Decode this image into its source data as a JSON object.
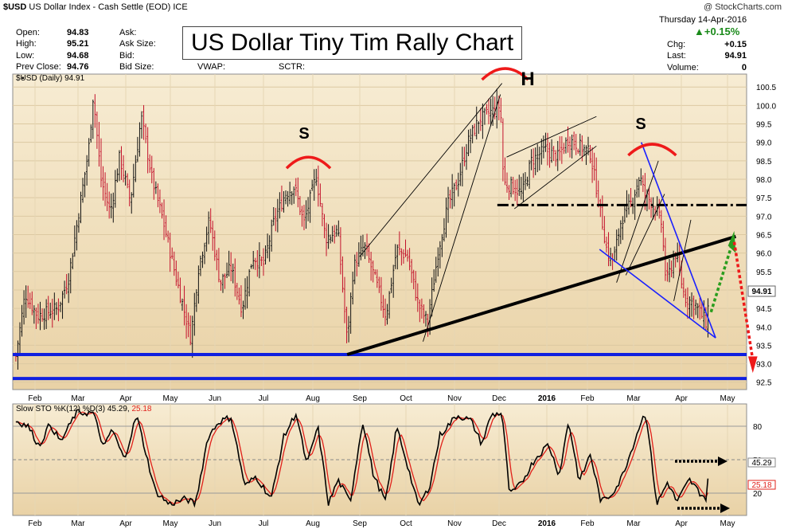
{
  "header": {
    "symbol": "$USD",
    "name": "US Dollar Index - Cash Settle (EOD)",
    "exchange": "ICE",
    "credit": "@ StockCharts.com",
    "date": "Thursday  14-Apr-2016",
    "change_pct": "+0.15%",
    "rows_left": [
      {
        "label": "Open:",
        "value": "94.83"
      },
      {
        "label": "High:",
        "value": "95.21"
      },
      {
        "label": "Low:",
        "value": "94.68"
      },
      {
        "label": "Prev Close:",
        "value": "94.76"
      }
    ],
    "rows_mid": [
      "Ask:",
      "Ask Size:",
      "Bid:",
      "Bid Size:"
    ],
    "vwap": "VWAP:",
    "sctr": "SCTR:",
    "rows_right": [
      {
        "label": "Chg:",
        "value": "+0.15"
      },
      {
        "label": "Last:",
        "value": "94.91"
      },
      {
        "label": "Volume:",
        "value": "0"
      }
    ]
  },
  "annotation_title": "US Dollar Tiny Tim Rally Chart",
  "chart_data": [
    {
      "type": "candlestick",
      "legend": "$USD (Daily) 94.91",
      "last_value": "94.91",
      "y_ticks": [
        "92.5",
        "93.0",
        "93.5",
        "94.0",
        "94.5",
        "95.0",
        "95.5",
        "96.0",
        "96.5",
        "97.0",
        "97.5",
        "98.0",
        "98.5",
        "99.0",
        "99.5",
        "100.0",
        "100.5"
      ],
      "ylim": [
        92.3,
        100.85
      ],
      "x_ticks": [
        "Feb",
        "Mar",
        "Apr",
        "May",
        "Jun",
        "Jul",
        "Aug",
        "Sep",
        "Oct",
        "Nov",
        "Dec",
        "2016",
        "Feb",
        "Mar",
        "Apr",
        "May"
      ],
      "close_path": [
        [
          "2015-01-22",
          93.2
        ],
        [
          "2015-01-28",
          94.9
        ],
        [
          "2015-02-05",
          94.3
        ],
        [
          "2015-02-18",
          94.5
        ],
        [
          "2015-02-25",
          95.3
        ],
        [
          "2015-03-04",
          97.2
        ],
        [
          "2015-03-10",
          98.8
        ],
        [
          "2015-03-13",
          100.3
        ],
        [
          "2015-03-18",
          98.0
        ],
        [
          "2015-03-24",
          97.1
        ],
        [
          "2015-03-30",
          98.6
        ],
        [
          "2015-04-06",
          97.4
        ],
        [
          "2015-04-13",
          99.7
        ],
        [
          "2015-04-20",
          98.0
        ],
        [
          "2015-04-27",
          96.9
        ],
        [
          "2015-05-04",
          95.6
        ],
        [
          "2015-05-08",
          94.9
        ],
        [
          "2015-05-15",
          93.7
        ],
        [
          "2015-05-20",
          95.6
        ],
        [
          "2015-05-27",
          96.9
        ],
        [
          "2015-06-03",
          95.2
        ],
        [
          "2015-06-10",
          95.6
        ],
        [
          "2015-06-17",
          94.5
        ],
        [
          "2015-06-24",
          95.9
        ],
        [
          "2015-07-01",
          95.7
        ],
        [
          "2015-07-08",
          96.9
        ],
        [
          "2015-07-15",
          97.6
        ],
        [
          "2015-07-21",
          97.8
        ],
        [
          "2015-07-27",
          96.8
        ],
        [
          "2015-08-04",
          98.1
        ],
        [
          "2015-08-10",
          96.4
        ],
        [
          "2015-08-18",
          96.6
        ],
        [
          "2015-08-24",
          93.6
        ],
        [
          "2015-08-28",
          95.6
        ],
        [
          "2015-09-04",
          96.2
        ],
        [
          "2015-09-11",
          95.3
        ],
        [
          "2015-09-18",
          94.3
        ],
        [
          "2015-09-25",
          96.1
        ],
        [
          "2015-10-02",
          95.9
        ],
        [
          "2015-10-09",
          94.6
        ],
        [
          "2015-10-15",
          94.1
        ],
        [
          "2015-10-22",
          96.1
        ],
        [
          "2015-10-28",
          97.3
        ],
        [
          "2015-11-04",
          98.0
        ],
        [
          "2015-11-10",
          99.0
        ],
        [
          "2015-11-17",
          99.6
        ],
        [
          "2015-11-24",
          99.8
        ],
        [
          "2015-12-01",
          100.0
        ],
        [
          "2015-12-03",
          97.9
        ],
        [
          "2015-12-09",
          97.8
        ],
        [
          "2015-12-15",
          97.6
        ],
        [
          "2015-12-21",
          98.5
        ],
        [
          "2015-12-30",
          98.8
        ],
        [
          "2016-01-07",
          98.6
        ],
        [
          "2016-01-14",
          99.1
        ],
        [
          "2016-01-21",
          98.9
        ],
        [
          "2016-01-28",
          98.7
        ],
        [
          "2016-02-03",
          97.3
        ],
        [
          "2016-02-08",
          96.0
        ],
        [
          "2016-02-12",
          95.8
        ],
        [
          "2016-02-17",
          96.9
        ],
        [
          "2016-02-24",
          97.4
        ],
        [
          "2016-02-29",
          98.1
        ],
        [
          "2016-03-03",
          97.6
        ],
        [
          "2016-03-09",
          97.3
        ],
        [
          "2016-03-14",
          96.8
        ],
        [
          "2016-03-17",
          95.2
        ],
        [
          "2016-03-23",
          96.0
        ],
        [
          "2016-03-29",
          94.8
        ],
        [
          "2016-04-05",
          94.6
        ],
        [
          "2016-04-12",
          94.1
        ],
        [
          "2016-04-14",
          94.91
        ]
      ],
      "annotations": {
        "left_shoulder": "S",
        "head": "H",
        "right_shoulder": "S"
      }
    },
    {
      "type": "line",
      "legend_prefix": "Slow STO %K(12) %D(3)",
      "k_value": "45.29",
      "d_value": "25.18",
      "y_ticks": [
        "20",
        "50",
        "80"
      ],
      "right_labels": [
        "45.29",
        "25.18"
      ],
      "ylim": [
        0,
        100
      ],
      "x_ticks": [
        "Feb",
        "Mar",
        "Apr",
        "May",
        "Jun",
        "Jul",
        "Aug",
        "Sep",
        "Oct",
        "Nov",
        "Dec",
        "2016",
        "Feb",
        "Mar",
        "Apr",
        "May"
      ],
      "series": [
        {
          "name": "%K",
          "color": "#000000"
        },
        {
          "name": "%D",
          "color": "#e0201a"
        }
      ],
      "k_path": [
        [
          "2015-01-22",
          85
        ],
        [
          "2015-01-30",
          80
        ],
        [
          "2015-02-06",
          62
        ],
        [
          "2015-02-13",
          82
        ],
        [
          "2015-02-20",
          66
        ],
        [
          "2015-03-02",
          92
        ],
        [
          "2015-03-13",
          92
        ],
        [
          "2015-03-20",
          60
        ],
        [
          "2015-03-25",
          78
        ],
        [
          "2015-04-02",
          50
        ],
        [
          "2015-04-10",
          90
        ],
        [
          "2015-04-22",
          22
        ],
        [
          "2015-05-01",
          10
        ],
        [
          "2015-05-12",
          15
        ],
        [
          "2015-05-18",
          10
        ],
        [
          "2015-05-26",
          70
        ],
        [
          "2015-06-02",
          84
        ],
        [
          "2015-06-10",
          88
        ],
        [
          "2015-06-19",
          26
        ],
        [
          "2015-06-26",
          35
        ],
        [
          "2015-07-06",
          15
        ],
        [
          "2015-07-14",
          70
        ],
        [
          "2015-07-22",
          92
        ],
        [
          "2015-07-29",
          45
        ],
        [
          "2015-08-05",
          80
        ],
        [
          "2015-08-12",
          10
        ],
        [
          "2015-08-18",
          32
        ],
        [
          "2015-08-26",
          12
        ],
        [
          "2015-09-03",
          85
        ],
        [
          "2015-09-10",
          36
        ],
        [
          "2015-09-18",
          12
        ],
        [
          "2015-09-25",
          80
        ],
        [
          "2015-10-02",
          45
        ],
        [
          "2015-10-09",
          8
        ],
        [
          "2015-10-16",
          25
        ],
        [
          "2015-10-23",
          72
        ],
        [
          "2015-11-03",
          90
        ],
        [
          "2015-11-12",
          85
        ],
        [
          "2015-11-19",
          64
        ],
        [
          "2015-11-25",
          90
        ],
        [
          "2015-12-02",
          92
        ],
        [
          "2015-12-07",
          18
        ],
        [
          "2015-12-14",
          28
        ],
        [
          "2015-12-23",
          50
        ],
        [
          "2016-01-01",
          64
        ],
        [
          "2016-01-08",
          36
        ],
        [
          "2016-01-14",
          85
        ],
        [
          "2016-01-21",
          30
        ],
        [
          "2016-01-28",
          55
        ],
        [
          "2016-02-04",
          12
        ],
        [
          "2016-02-10",
          18
        ],
        [
          "2016-02-16",
          30
        ],
        [
          "2016-02-22",
          52
        ],
        [
          "2016-03-01",
          85
        ],
        [
          "2016-03-04",
          92
        ],
        [
          "2016-03-11",
          10
        ],
        [
          "2016-03-18",
          30
        ],
        [
          "2016-03-24",
          12
        ],
        [
          "2016-04-01",
          32
        ],
        [
          "2016-04-08",
          20
        ],
        [
          "2016-04-12",
          15
        ],
        [
          "2016-04-14",
          45
        ]
      ]
    }
  ]
}
